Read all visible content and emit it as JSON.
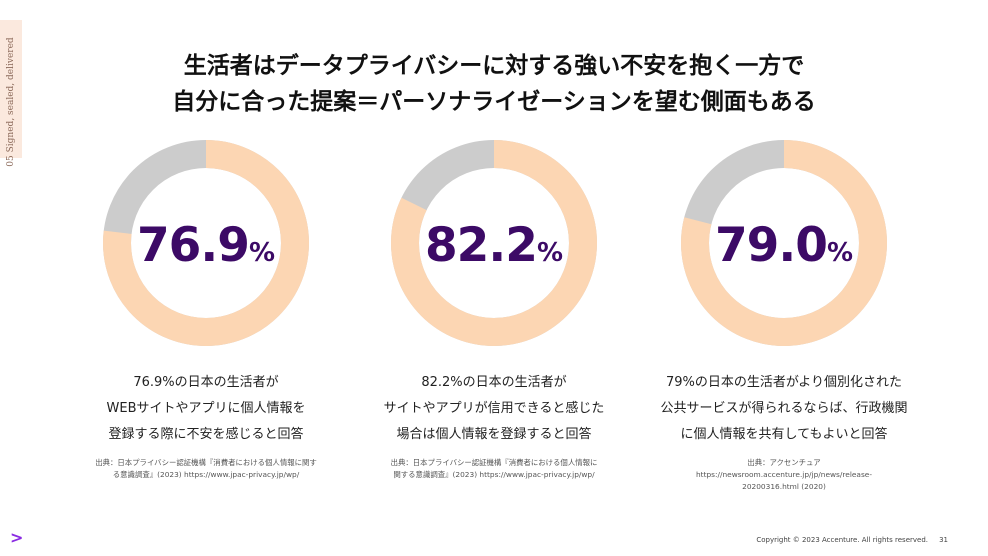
{
  "side_tab": {
    "text": "05 Signed, sealed, delivered"
  },
  "title": {
    "line1": "生活者はデータプライバシーに対する強い不安を抱く一方で",
    "line2": "自分に合った提案＝パーソナライゼーションを望む側面もある"
  },
  "colors": {
    "accent": "#3c0a66",
    "ring_fill": "#fcd6b3",
    "ring_rest": "#cccccc",
    "logo": "#8a2be2"
  },
  "stats": [
    {
      "percent_value": "76.9",
      "percent_unit": "%",
      "fraction": 0.769,
      "description": [
        "76.9%の日本の生活者が",
        "WEBサイトやアプリに個人情報を",
        "登録する際に不安を感じると回答"
      ],
      "source": [
        "出典：日本プライバシー認証機構『消費者における個人情報に関す",
        "る意識調査』(2023) https://www.jpac-privacy.jp/wp/"
      ]
    },
    {
      "percent_value": "82.2",
      "percent_unit": "%",
      "fraction": 0.822,
      "description": [
        "82.2%の日本の生活者が",
        "サイトやアプリが信用できると感じた",
        "場合は個人情報を登録すると回答"
      ],
      "source": [
        "出典：日本プライバシー認証機構『消費者における個人情報に",
        "関する意識調査』(2023) https://www.jpac-privacy.jp/wp/"
      ]
    },
    {
      "percent_value": "79.0",
      "percent_unit": "%",
      "fraction": 0.79,
      "description": [
        "79%の日本の生活者がより個別化された",
        "公共サービスが得られるならば、行政機関",
        "に個人情報を共有してもよいと回答"
      ],
      "source": [
        "出典：アクセンチュア",
        "https://newsroom.accenture.jp/jp/news/release-",
        "20200316.html (2020)"
      ]
    }
  ],
  "footer": {
    "logo_icon": "chevron-right-icon",
    "copyright": "Copyright © 2023 Accenture. All rights reserved.",
    "page_number": "31"
  }
}
